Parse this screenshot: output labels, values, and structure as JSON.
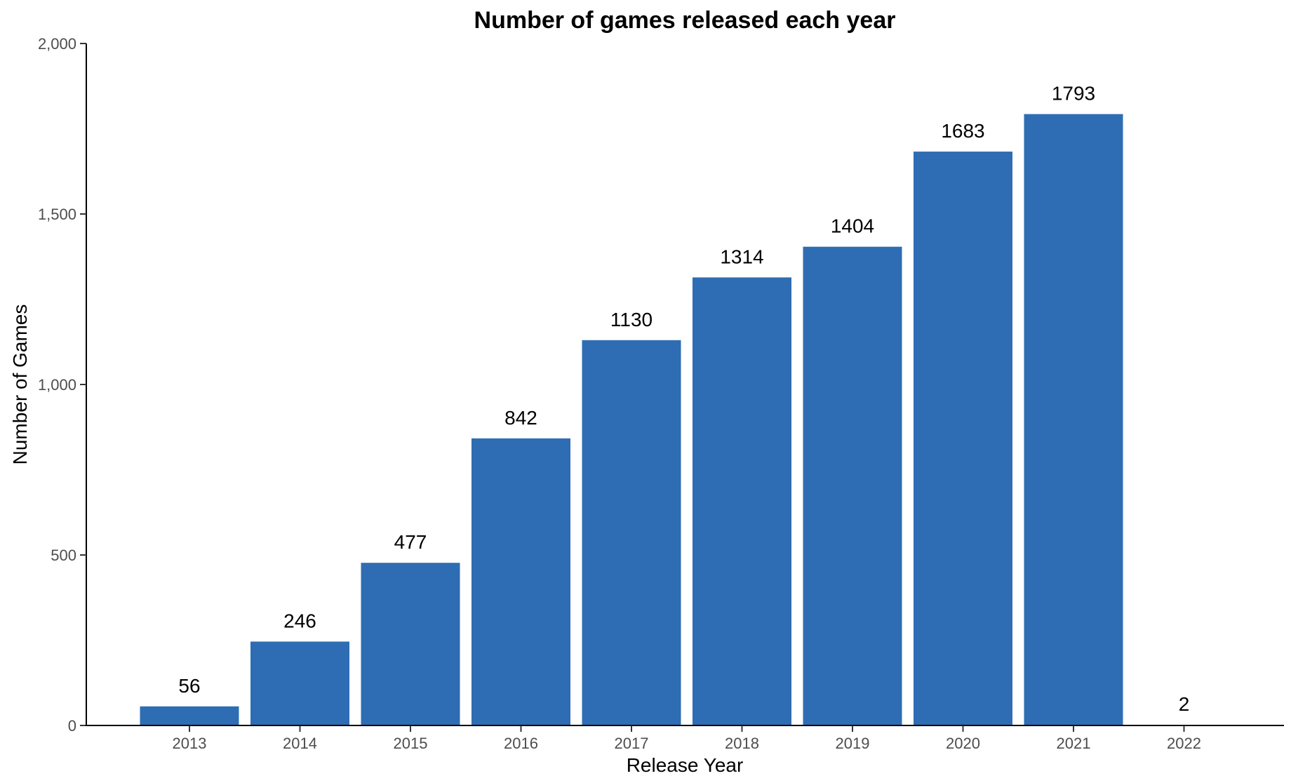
{
  "chart_data": {
    "type": "bar",
    "title": "Number of games released each year",
    "xlabel": "Release Year",
    "ylabel": "Number of Games",
    "categories": [
      "2013",
      "2014",
      "2015",
      "2016",
      "2017",
      "2018",
      "2019",
      "2020",
      "2021",
      "2022"
    ],
    "values": [
      56,
      246,
      477,
      842,
      1130,
      1314,
      1404,
      1683,
      1793,
      2
    ],
    "data_labels": [
      "56",
      "246",
      "477",
      "842",
      "1130",
      "1314",
      "1404",
      "1683",
      "1793",
      "2"
    ],
    "ylim": [
      0,
      2000
    ],
    "yticks": [
      0,
      500,
      1000,
      1500,
      2000
    ],
    "ytick_labels": [
      "0",
      "500",
      "1,000",
      "1,500",
      "2,000"
    ],
    "bar_color": "#2e6db3",
    "grid": false,
    "legend": "none"
  }
}
